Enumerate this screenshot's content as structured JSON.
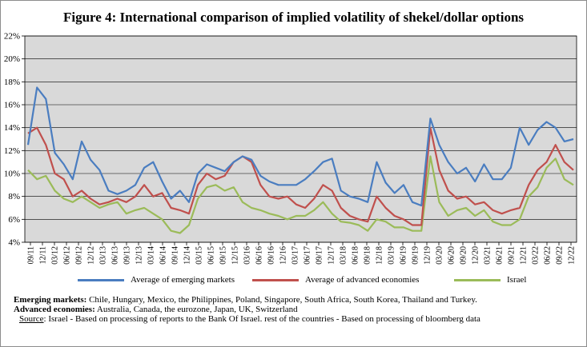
{
  "chart_data": {
    "type": "line",
    "title": "Figure 4: International comparison of implied volatility of shekel/dollar options",
    "xlabel": "",
    "ylabel": "",
    "ylim": [
      4,
      22
    ],
    "y_ticks": [
      "4%",
      "6%",
      "8%",
      "10%",
      "12%",
      "14%",
      "16%",
      "18%",
      "20%",
      "22%"
    ],
    "x_ticks": [
      "09/11",
      "12/11",
      "03/12",
      "06/12",
      "09/12",
      "12/12",
      "03/13",
      "06/13",
      "09/13",
      "12/13",
      "03/14",
      "06/14",
      "09/14",
      "12/14",
      "03/15",
      "06/15",
      "09/15",
      "12/15",
      "03/16",
      "06/16",
      "09/16",
      "12/16",
      "03/17",
      "06/17",
      "09/17",
      "12/17",
      "03/18",
      "06/18",
      "09/18",
      "12/18",
      "03/19",
      "06/19",
      "09/19",
      "12/19",
      "03/20",
      "06/20",
      "09/20",
      "12/20",
      "03/21",
      "06/21",
      "09/21",
      "12/21",
      "03/22",
      "06/22",
      "09/22",
      "12/22"
    ],
    "grid": true,
    "legend_position": "bottom",
    "series": [
      {
        "name": "Average of emerging markets",
        "color": "#4a7dc0",
        "values": [
          12.5,
          17.5,
          16.5,
          11.8,
          10.8,
          9.5,
          12.8,
          11.2,
          10.3,
          8.5,
          8.2,
          8.5,
          9.0,
          10.5,
          11.0,
          9.3,
          7.8,
          8.5,
          7.5,
          10.0,
          10.8,
          10.5,
          10.2,
          11.0,
          11.5,
          11.2,
          9.8,
          9.3,
          9.0,
          9.0,
          9.0,
          9.5,
          10.2,
          11.0,
          11.3,
          8.5,
          8.0,
          7.8,
          7.5,
          11.0,
          9.2,
          8.3,
          9.0,
          7.5,
          7.2,
          14.8,
          12.5,
          11.0,
          10.0,
          10.5,
          9.3,
          10.8,
          9.5,
          9.5,
          10.5,
          14.0,
          12.5,
          13.8,
          14.5,
          14.0,
          12.8,
          13.0
        ]
      },
      {
        "name": "Average of advanced economies",
        "color": "#c0504d",
        "values": [
          13.5,
          14.0,
          12.5,
          10.0,
          9.5,
          8.0,
          8.5,
          7.8,
          7.3,
          7.5,
          7.8,
          7.5,
          8.0,
          9.0,
          8.0,
          8.3,
          7.0,
          6.8,
          6.5,
          9.0,
          10.0,
          9.5,
          9.8,
          11.0,
          11.5,
          11.0,
          9.0,
          8.0,
          7.8,
          8.0,
          7.3,
          7.0,
          7.8,
          9.0,
          8.5,
          7.0,
          6.3,
          6.0,
          5.8,
          8.0,
          7.0,
          6.3,
          6.0,
          5.5,
          5.5,
          14.0,
          10.3,
          8.5,
          7.8,
          8.0,
          7.3,
          7.5,
          6.8,
          6.5,
          6.8,
          7.0,
          9.0,
          10.3,
          11.0,
          12.5,
          11.0,
          10.3
        ]
      },
      {
        "name": "Israel",
        "color": "#9bbb59",
        "values": [
          10.3,
          9.5,
          9.8,
          8.5,
          7.8,
          7.5,
          8.0,
          7.5,
          7.0,
          7.3,
          7.5,
          6.5,
          6.8,
          7.0,
          6.5,
          6.0,
          5.0,
          4.8,
          5.5,
          7.8,
          8.8,
          9.0,
          8.5,
          8.8,
          7.5,
          7.0,
          6.8,
          6.5,
          6.3,
          6.0,
          6.3,
          6.3,
          6.8,
          7.5,
          6.5,
          5.8,
          5.7,
          5.5,
          5.0,
          6.0,
          5.8,
          5.3,
          5.3,
          5.0,
          5.0,
          11.5,
          7.5,
          6.3,
          6.8,
          7.0,
          6.3,
          6.8,
          5.8,
          5.5,
          5.5,
          6.0,
          8.0,
          8.8,
          10.5,
          11.3,
          9.5,
          9.0
        ]
      }
    ]
  },
  "legend_items": [
    {
      "label": "Average of emerging markets",
      "color": "#4a7dc0"
    },
    {
      "label": "Average of advanced economies",
      "color": "#c0504d"
    },
    {
      "label": "Israel",
      "color": "#9bbb59"
    }
  ],
  "notes": {
    "emerging_label": "Emerging markets:",
    "emerging_text": " Chile, Hungary, Mexico, the Philippines, Poland, Singapore, South Africa, South Korea, Thailand and Turkey.",
    "advanced_label": "Advanced economies:",
    "advanced_text": " Australia, Canada, the eurozone, Japan, UK, Switzerland",
    "source_label": "Source",
    "source_text": ": Israel - Based on processing of reports to the Bank Of Israel. rest of the countries - Based on processing of bloomberg data"
  }
}
